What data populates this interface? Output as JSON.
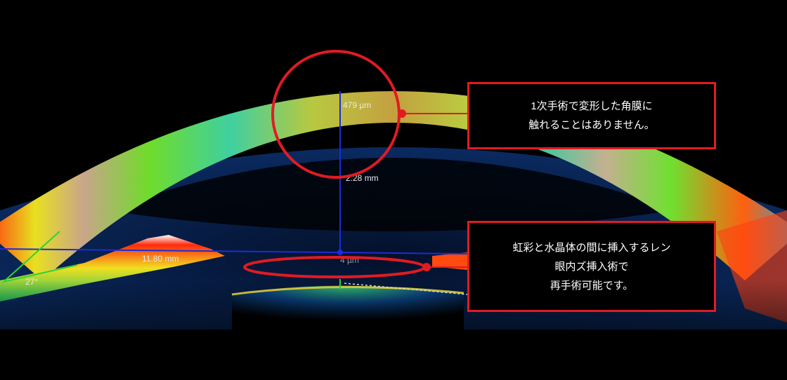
{
  "scan": {
    "measurements": {
      "corneal_thickness": "479 µm",
      "anterior_chamber_depth": "2.28 mm",
      "angle_to_angle": "11.80 mm",
      "angle": "27°",
      "vault": "4 µm"
    }
  },
  "callouts": [
    {
      "lines": [
        "1次手術で変形した角膜に",
        "触れることはありません。"
      ]
    },
    {
      "lines": [
        "虹彩と水晶体の間に挿入するレン",
        "眼内ズ挿入術で",
        "再手術可能です。"
      ]
    }
  ],
  "colors": {
    "accent": "#e11b22",
    "measure_line": "#1a2dd8",
    "angle_line": "#2fd13a"
  }
}
